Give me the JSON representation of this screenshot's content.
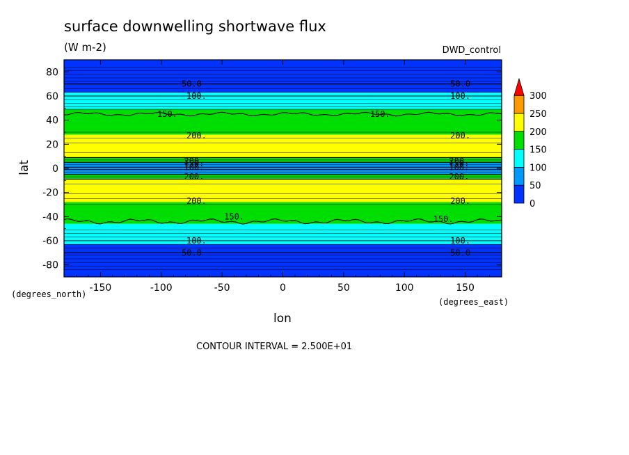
{
  "chart_data": {
    "type": "heatmap",
    "title": "surface downwelling shortwave flux",
    "units": "(W m-2)",
    "experiment": "DWD_control",
    "xlabel": "lon",
    "ylabel": "lat",
    "x_unit_label": "(degrees_east)",
    "y_unit_label": "(degrees_north)",
    "xlim": [
      -180,
      180
    ],
    "ylim": [
      -90,
      90
    ],
    "x_ticks": [
      -150,
      -100,
      -50,
      0,
      50,
      100,
      150
    ],
    "y_ticks": [
      -80,
      -60,
      -40,
      -20,
      0,
      20,
      40,
      60,
      80
    ],
    "x_tick_labels": [
      "-150",
      "-100",
      "-50",
      "0",
      "50",
      "100",
      "150"
    ],
    "y_tick_labels": [
      "-80",
      "-60",
      "-40",
      "-20",
      "0",
      "20",
      "40",
      "60",
      "80"
    ],
    "contour_interval_text": "CONTOUR INTERVAL = 2.500E+01",
    "colorbar": {
      "levels": [
        0,
        50,
        100,
        150,
        200,
        250,
        300
      ],
      "labels": [
        "0",
        "50",
        "100",
        "150",
        "200",
        "250",
        "300"
      ],
      "colors": [
        "#0033ff",
        "#0099ff",
        "#00ffff",
        "#00dd00",
        "#ffff00",
        "#ff9900",
        "#ff0000"
      ],
      "extend": "max"
    },
    "bands": [
      {
        "lat_min": 63,
        "lat_max": 90,
        "value_class": 0
      },
      {
        "lat_min": 49,
        "lat_max": 63,
        "value_class": 2
      },
      {
        "lat_min": 28,
        "lat_max": 49,
        "value_class": 3
      },
      {
        "lat_min": 9,
        "lat_max": 28,
        "value_class": 4
      },
      {
        "lat_min": 5,
        "lat_max": 9,
        "value_class": 3
      },
      {
        "lat_min": -5,
        "lat_max": 5,
        "value_class": 1
      },
      {
        "lat_min": -9,
        "lat_max": -5,
        "value_class": 3
      },
      {
        "lat_min": -28,
        "lat_max": -9,
        "value_class": 4
      },
      {
        "lat_min": -46,
        "lat_max": -28,
        "value_class": 3
      },
      {
        "lat_min": -63,
        "lat_max": -46,
        "value_class": 2
      },
      {
        "lat_min": -90,
        "lat_max": -63,
        "value_class": 0
      }
    ],
    "contour_labels": [
      {
        "text": "50.0",
        "lon": -75,
        "lat": 70
      },
      {
        "text": "50.0",
        "lon": 146,
        "lat": 70
      },
      {
        "text": "100.",
        "lon": -71,
        "lat": 60
      },
      {
        "text": "100.",
        "lon": 146,
        "lat": 60
      },
      {
        "text": "150.",
        "lon": -95,
        "lat": 45
      },
      {
        "text": "150.",
        "lon": 80,
        "lat": 45
      },
      {
        "text": "200.",
        "lon": -71,
        "lat": 27
      },
      {
        "text": "200.",
        "lon": 146,
        "lat": 27
      },
      {
        "text": "200.",
        "lon": -73,
        "lat": 6
      },
      {
        "text": "200.",
        "lon": 145,
        "lat": 6
      },
      {
        "text": "150.",
        "lon": -73,
        "lat": 4
      },
      {
        "text": "150.",
        "lon": 145,
        "lat": 4
      },
      {
        "text": "100.",
        "lon": -73,
        "lat": 1
      },
      {
        "text": "100.",
        "lon": 145,
        "lat": 1
      },
      {
        "text": "200.",
        "lon": -73,
        "lat": -7
      },
      {
        "text": "200.",
        "lon": 145,
        "lat": -7
      },
      {
        "text": "200.",
        "lon": -71,
        "lat": -27
      },
      {
        "text": "200.",
        "lon": 146,
        "lat": -27
      },
      {
        "text": "150.",
        "lon": -40,
        "lat": -40
      },
      {
        "text": "150.",
        "lon": 132,
        "lat": -42
      },
      {
        "text": "100.",
        "lon": -71,
        "lat": -60
      },
      {
        "text": "100.",
        "lon": 146,
        "lat": -60
      },
      {
        "text": "50.0",
        "lon": -75,
        "lat": -70
      },
      {
        "text": "50.0",
        "lon": 146,
        "lat": -70
      }
    ]
  }
}
